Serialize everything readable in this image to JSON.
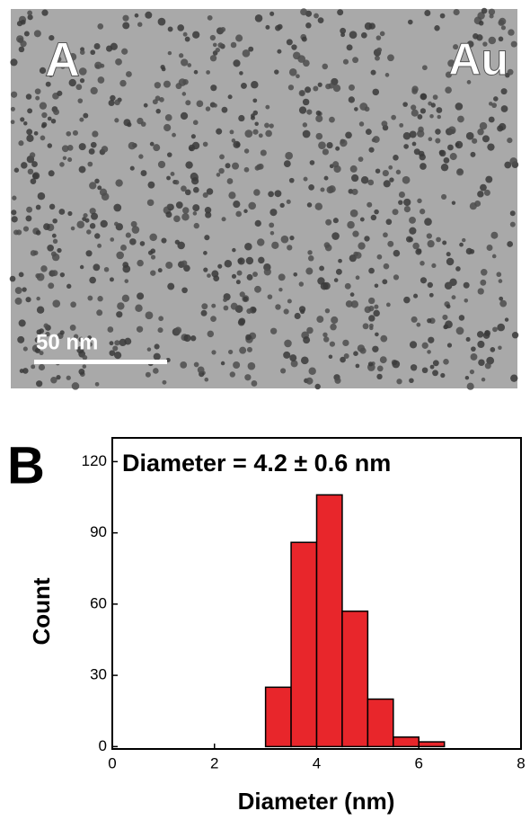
{
  "panel_a": {
    "label": "A",
    "element": "Au",
    "scale_bar": "50 nm"
  },
  "chart_data": {
    "type": "histogram",
    "panel_label": "B",
    "annotation": "Diameter = 4.2 ± 0.6 nm",
    "x_label": "Diameter (nm)",
    "y_label": "Count",
    "bins": [
      3,
      3.5,
      4,
      4.5,
      5,
      5.5,
      6,
      6.5
    ],
    "counts": [
      25,
      86,
      106,
      57,
      20,
      4,
      2
    ],
    "color": "#e8262b",
    "xlim": [
      0,
      8
    ],
    "xticks": [
      0,
      2,
      4,
      6,
      8
    ],
    "ylim": [
      -1,
      130
    ],
    "yticks": [
      0,
      30,
      60,
      90,
      120
    ]
  }
}
